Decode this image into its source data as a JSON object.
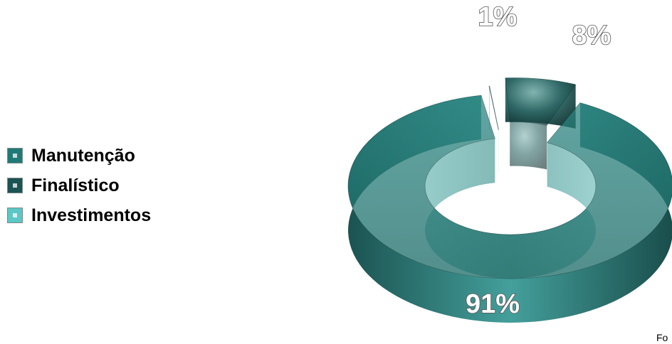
{
  "chart_data": {
    "type": "pie",
    "style": "3d-donut",
    "title": "",
    "categories": [
      "Manutenção",
      "Finalístico",
      "Investimentos"
    ],
    "values": [
      91,
      8,
      1
    ],
    "labels": [
      "91%",
      "8%",
      "1%"
    ],
    "colors": [
      "#1f7a76",
      "#1b5452",
      "#5cc7c5"
    ],
    "legend_position": "left"
  },
  "source_note": "Fo"
}
